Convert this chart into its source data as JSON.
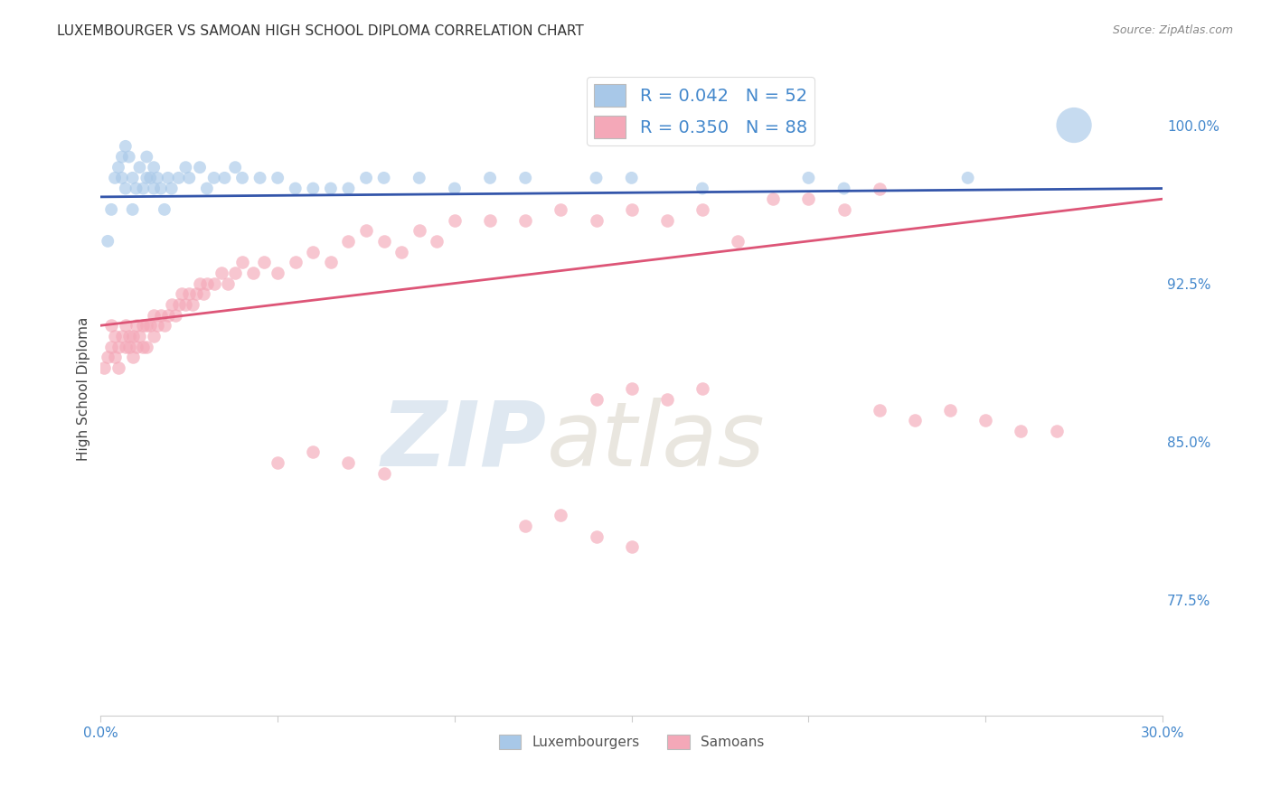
{
  "title": "LUXEMBOURGER VS SAMOAN HIGH SCHOOL DIPLOMA CORRELATION CHART",
  "source": "Source: ZipAtlas.com",
  "ylabel": "High School Diploma",
  "xlim": [
    0.0,
    0.3
  ],
  "ylim": [
    0.72,
    1.03
  ],
  "yticks": [
    0.775,
    0.85,
    0.925,
    1.0
  ],
  "ytick_labels": [
    "77.5%",
    "85.0%",
    "92.5%",
    "100.0%"
  ],
  "xticks": [
    0.0,
    0.05,
    0.1,
    0.15,
    0.2,
    0.25,
    0.3
  ],
  "xtick_labels": [
    "0.0%",
    "",
    "",
    "",
    "",
    "",
    "30.0%"
  ],
  "blue_R": 0.042,
  "blue_N": 52,
  "pink_R": 0.35,
  "pink_N": 88,
  "blue_label": "Luxembourgers",
  "pink_label": "Samoans",
  "blue_color": "#A8C8E8",
  "pink_color": "#F4A8B8",
  "blue_line_color": "#3355AA",
  "pink_line_color": "#DD5577",
  "background_color": "#FFFFFF",
  "grid_color": "#CCCCCC",
  "title_color": "#333333",
  "tick_label_color": "#4488CC",
  "blue_trend_y0": 0.966,
  "blue_trend_y1": 0.97,
  "pink_trend_y0": 0.905,
  "pink_trend_y1": 0.965,
  "blue_x": [
    0.002,
    0.003,
    0.004,
    0.005,
    0.006,
    0.006,
    0.007,
    0.007,
    0.008,
    0.009,
    0.009,
    0.01,
    0.011,
    0.012,
    0.013,
    0.013,
    0.014,
    0.015,
    0.015,
    0.016,
    0.017,
    0.018,
    0.019,
    0.02,
    0.022,
    0.024,
    0.025,
    0.028,
    0.03,
    0.032,
    0.035,
    0.038,
    0.04,
    0.045,
    0.05,
    0.055,
    0.06,
    0.065,
    0.07,
    0.075,
    0.08,
    0.09,
    0.1,
    0.11,
    0.12,
    0.14,
    0.15,
    0.17,
    0.2,
    0.21,
    0.245,
    0.275
  ],
  "blue_y": [
    0.945,
    0.96,
    0.975,
    0.98,
    0.985,
    0.975,
    0.99,
    0.97,
    0.985,
    0.96,
    0.975,
    0.97,
    0.98,
    0.97,
    0.975,
    0.985,
    0.975,
    0.97,
    0.98,
    0.975,
    0.97,
    0.96,
    0.975,
    0.97,
    0.975,
    0.98,
    0.975,
    0.98,
    0.97,
    0.975,
    0.975,
    0.98,
    0.975,
    0.975,
    0.975,
    0.97,
    0.97,
    0.97,
    0.97,
    0.975,
    0.975,
    0.975,
    0.97,
    0.975,
    0.975,
    0.975,
    0.975,
    0.97,
    0.975,
    0.97,
    0.975,
    1.0
  ],
  "blue_sizes": [
    100,
    100,
    100,
    100,
    100,
    100,
    100,
    100,
    100,
    100,
    100,
    100,
    100,
    100,
    100,
    100,
    100,
    100,
    100,
    100,
    100,
    100,
    100,
    100,
    100,
    100,
    100,
    100,
    100,
    100,
    100,
    100,
    100,
    100,
    100,
    100,
    100,
    100,
    100,
    100,
    100,
    100,
    100,
    100,
    100,
    100,
    100,
    100,
    100,
    100,
    100,
    800
  ],
  "pink_x": [
    0.001,
    0.002,
    0.003,
    0.003,
    0.004,
    0.004,
    0.005,
    0.005,
    0.006,
    0.007,
    0.007,
    0.008,
    0.008,
    0.009,
    0.009,
    0.01,
    0.01,
    0.011,
    0.012,
    0.012,
    0.013,
    0.013,
    0.014,
    0.015,
    0.015,
    0.016,
    0.017,
    0.018,
    0.019,
    0.02,
    0.021,
    0.022,
    0.023,
    0.024,
    0.025,
    0.026,
    0.027,
    0.028,
    0.029,
    0.03,
    0.032,
    0.034,
    0.036,
    0.038,
    0.04,
    0.043,
    0.046,
    0.05,
    0.055,
    0.06,
    0.065,
    0.07,
    0.075,
    0.08,
    0.085,
    0.09,
    0.095,
    0.1,
    0.11,
    0.12,
    0.13,
    0.14,
    0.15,
    0.16,
    0.17,
    0.18,
    0.19,
    0.2,
    0.21,
    0.22,
    0.14,
    0.15,
    0.16,
    0.17,
    0.22,
    0.23,
    0.24,
    0.25,
    0.26,
    0.27,
    0.05,
    0.06,
    0.07,
    0.08,
    0.12,
    0.13,
    0.14,
    0.15
  ],
  "pink_y": [
    0.885,
    0.89,
    0.895,
    0.905,
    0.89,
    0.9,
    0.895,
    0.885,
    0.9,
    0.895,
    0.905,
    0.9,
    0.895,
    0.89,
    0.9,
    0.895,
    0.905,
    0.9,
    0.905,
    0.895,
    0.905,
    0.895,
    0.905,
    0.9,
    0.91,
    0.905,
    0.91,
    0.905,
    0.91,
    0.915,
    0.91,
    0.915,
    0.92,
    0.915,
    0.92,
    0.915,
    0.92,
    0.925,
    0.92,
    0.925,
    0.925,
    0.93,
    0.925,
    0.93,
    0.935,
    0.93,
    0.935,
    0.93,
    0.935,
    0.94,
    0.935,
    0.945,
    0.95,
    0.945,
    0.94,
    0.95,
    0.945,
    0.955,
    0.955,
    0.955,
    0.96,
    0.955,
    0.96,
    0.955,
    0.96,
    0.945,
    0.965,
    0.965,
    0.96,
    0.97,
    0.87,
    0.875,
    0.87,
    0.875,
    0.865,
    0.86,
    0.865,
    0.86,
    0.855,
    0.855,
    0.84,
    0.845,
    0.84,
    0.835,
    0.81,
    0.815,
    0.805,
    0.8
  ]
}
